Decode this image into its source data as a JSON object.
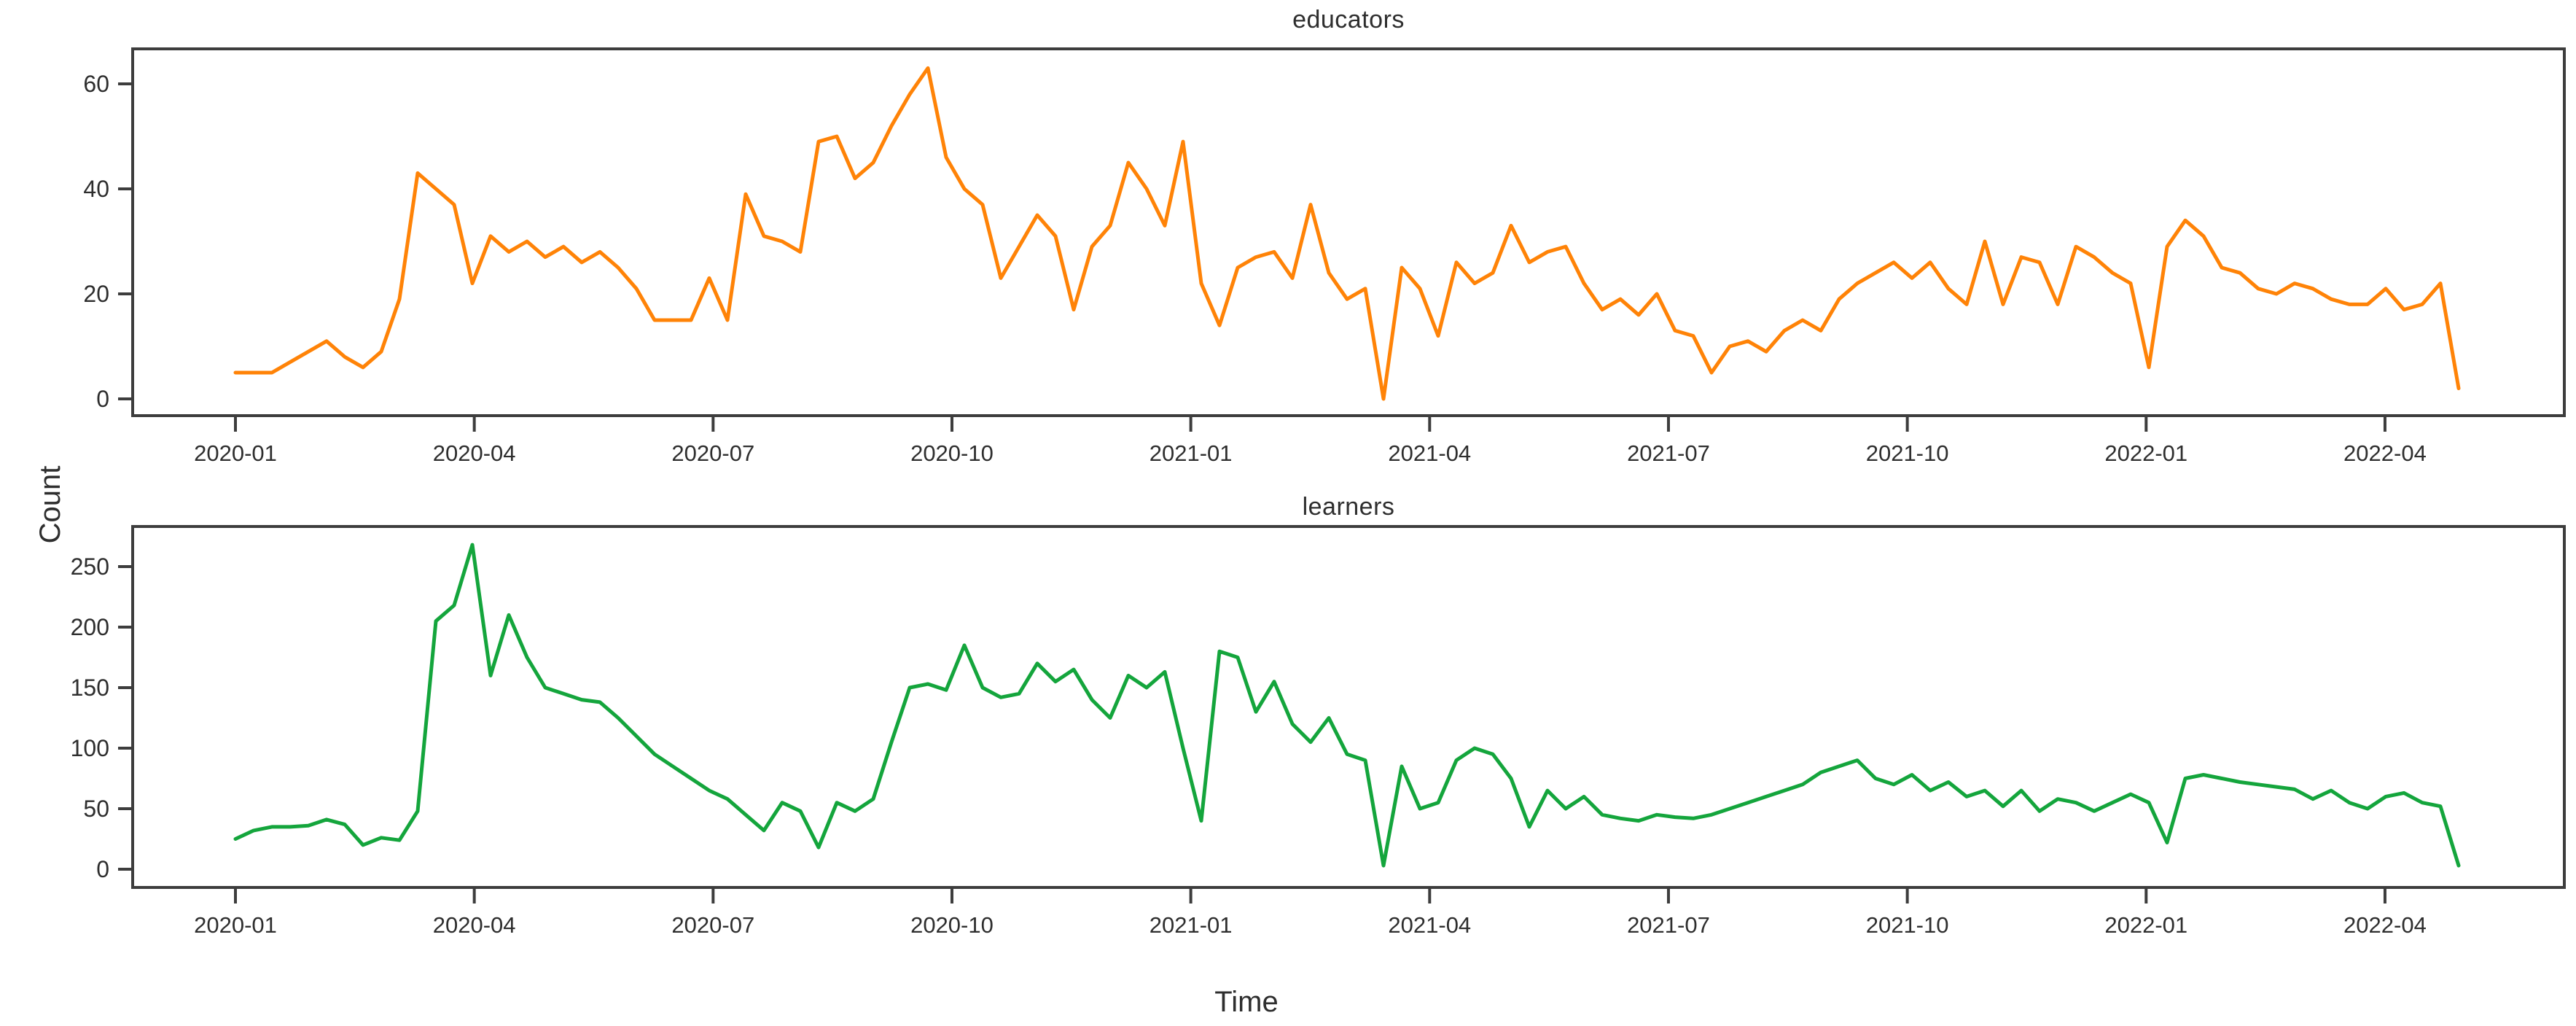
{
  "figure": {
    "ylabel": "Count",
    "xlabel": "Time",
    "background": "#ffffff",
    "axis_color": "#3d3d3d",
    "text_color": "#2e2e2e"
  },
  "chart_data": [
    {
      "type": "line",
      "title": "educators",
      "color": "#ff8307",
      "ylabel": "Count",
      "xlabel": "Time",
      "ylim": [
        0,
        66
      ],
      "yticks": [
        0,
        20,
        40,
        60
      ],
      "x_tick_labels": [
        "2020-01",
        "2020-04",
        "2020-07",
        "2020-10",
        "2021-01",
        "2021-04",
        "2021-07",
        "2021-10",
        "2022-01",
        "2022-04"
      ],
      "x_interval": "weekly",
      "grid": false,
      "legend": "none",
      "values": [
        5,
        5,
        5,
        7,
        9,
        11,
        8,
        6,
        9,
        19,
        43,
        40,
        37,
        22,
        31,
        28,
        30,
        27,
        29,
        26,
        28,
        25,
        21,
        15,
        15,
        15,
        23,
        15,
        39,
        31,
        30,
        28,
        49,
        50,
        42,
        45,
        52,
        58,
        63,
        46,
        40,
        37,
        23,
        29,
        35,
        31,
        17,
        29,
        33,
        45,
        40,
        33,
        49,
        22,
        14,
        25,
        27,
        28,
        23,
        37,
        24,
        19,
        21,
        0,
        25,
        21,
        12,
        26,
        22,
        24,
        33,
        26,
        28,
        29,
        22,
        17,
        19,
        16,
        20,
        13,
        12,
        5,
        10,
        11,
        9,
        13,
        15,
        13,
        19,
        22,
        24,
        26,
        23,
        26,
        21,
        18,
        30,
        18,
        27,
        26,
        18,
        29,
        27,
        24,
        22,
        6,
        29,
        34,
        31,
        25,
        24,
        21,
        20,
        22,
        21,
        19,
        18,
        18,
        21,
        17,
        18,
        22,
        2
      ]
    },
    {
      "type": "line",
      "title": "learners",
      "color": "#14a53c",
      "ylabel": "Count",
      "xlabel": "Time",
      "ylim": [
        0,
        283
      ],
      "yticks": [
        0,
        50,
        100,
        150,
        200,
        250
      ],
      "x_tick_labels": [
        "2020-01",
        "2020-04",
        "2020-07",
        "2020-10",
        "2021-01",
        "2021-04",
        "2021-07",
        "2021-10",
        "2022-01",
        "2022-04"
      ],
      "x_interval": "weekly",
      "grid": false,
      "legend": "none",
      "values": [
        25,
        32,
        35,
        35,
        36,
        41,
        37,
        20,
        26,
        24,
        48,
        205,
        218,
        268,
        160,
        210,
        175,
        150,
        145,
        140,
        138,
        125,
        110,
        95,
        85,
        75,
        65,
        58,
        45,
        32,
        55,
        48,
        18,
        55,
        48,
        58,
        105,
        150,
        153,
        148,
        185,
        150,
        142,
        145,
        170,
        155,
        165,
        140,
        125,
        160,
        150,
        163,
        100,
        40,
        180,
        175,
        130,
        155,
        120,
        105,
        125,
        95,
        90,
        3,
        85,
        50,
        55,
        90,
        100,
        95,
        75,
        35,
        65,
        50,
        60,
        45,
        42,
        40,
        45,
        43,
        42,
        45,
        50,
        55,
        60,
        65,
        70,
        80,
        85,
        90,
        75,
        70,
        78,
        65,
        72,
        60,
        65,
        52,
        65,
        48,
        58,
        55,
        48,
        55,
        62,
        55,
        22,
        75,
        78,
        75,
        72,
        70,
        68,
        66,
        58,
        65,
        55,
        50,
        60,
        63,
        55,
        52,
        3
      ]
    }
  ]
}
